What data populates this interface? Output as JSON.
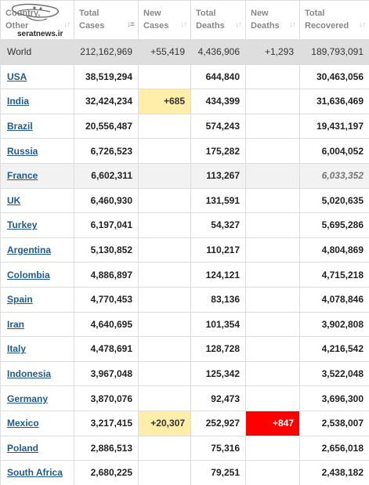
{
  "table": {
    "headers": [
      {
        "line1": "Country,",
        "line2": "Other",
        "sort_icon": "sort-arrows-icon"
      },
      {
        "line1": "Total",
        "line2": "Cases",
        "sort_icon": "sort-desc-active-icon"
      },
      {
        "line1": "New",
        "line2": "Cases",
        "sort_icon": "sort-arrows-icon"
      },
      {
        "line1": "Total",
        "line2": "Deaths",
        "sort_icon": "sort-arrows-icon"
      },
      {
        "line1": "New",
        "line2": "Deaths",
        "sort_icon": "sort-arrows-icon"
      },
      {
        "line1": "Total",
        "line2": "Recovered",
        "sort_icon": "sort-arrows-icon"
      }
    ],
    "rows": [
      {
        "country": "World",
        "total_cases": "212,162,969",
        "new_cases": "+55,419",
        "total_deaths": "4,436,906",
        "new_deaths": "+1,293",
        "total_recovered": "189,793,091"
      },
      {
        "country": "USA",
        "total_cases": "38,519,294",
        "new_cases": "",
        "total_deaths": "644,840",
        "new_deaths": "",
        "total_recovered": "30,463,056"
      },
      {
        "country": "India",
        "total_cases": "32,424,234",
        "new_cases": "+685",
        "total_deaths": "434,399",
        "new_deaths": "",
        "total_recovered": "31,636,469"
      },
      {
        "country": "Brazil",
        "total_cases": "20,556,487",
        "new_cases": "",
        "total_deaths": "574,243",
        "new_deaths": "",
        "total_recovered": "19,431,197"
      },
      {
        "country": "Russia",
        "total_cases": "6,726,523",
        "new_cases": "",
        "total_deaths": "175,282",
        "new_deaths": "",
        "total_recovered": "6,004,052"
      },
      {
        "country": "France",
        "total_cases": "6,602,311",
        "new_cases": "",
        "total_deaths": "113,267",
        "new_deaths": "",
        "total_recovered": "6,033,352"
      },
      {
        "country": "UK",
        "total_cases": "6,460,930",
        "new_cases": "",
        "total_deaths": "131,591",
        "new_deaths": "",
        "total_recovered": "5,020,635"
      },
      {
        "country": "Turkey",
        "total_cases": "6,197,041",
        "new_cases": "",
        "total_deaths": "54,327",
        "new_deaths": "",
        "total_recovered": "5,695,286"
      },
      {
        "country": "Argentina",
        "total_cases": "5,130,852",
        "new_cases": "",
        "total_deaths": "110,217",
        "new_deaths": "",
        "total_recovered": "4,804,869"
      },
      {
        "country": "Colombia",
        "total_cases": "4,886,897",
        "new_cases": "",
        "total_deaths": "124,121",
        "new_deaths": "",
        "total_recovered": "4,715,218"
      },
      {
        "country": "Spain",
        "total_cases": "4,770,453",
        "new_cases": "",
        "total_deaths": "83,136",
        "new_deaths": "",
        "total_recovered": "4,078,846"
      },
      {
        "country": "Iran",
        "total_cases": "4,640,695",
        "new_cases": "",
        "total_deaths": "101,354",
        "new_deaths": "",
        "total_recovered": "3,902,808"
      },
      {
        "country": "Italy",
        "total_cases": "4,478,691",
        "new_cases": "",
        "total_deaths": "128,728",
        "new_deaths": "",
        "total_recovered": "4,216,542"
      },
      {
        "country": "Indonesia",
        "total_cases": "3,967,048",
        "new_cases": "",
        "total_deaths": "125,342",
        "new_deaths": "",
        "total_recovered": "3,522,048"
      },
      {
        "country": "Germany",
        "total_cases": "3,870,076",
        "new_cases": "",
        "total_deaths": "92,473",
        "new_deaths": "",
        "total_recovered": "3,696,300"
      },
      {
        "country": "Mexico",
        "total_cases": "3,217,415",
        "new_cases": "+20,307",
        "total_deaths": "252,927",
        "new_deaths": "+847",
        "total_recovered": "2,538,007"
      },
      {
        "country": "Poland",
        "total_cases": "2,886,513",
        "new_cases": "",
        "total_deaths": "75,316",
        "new_deaths": "",
        "total_recovered": "2,656,018"
      },
      {
        "country": "South Africa",
        "total_cases": "2,680,225",
        "new_cases": "",
        "total_deaths": "79,251",
        "new_deaths": "",
        "total_recovered": "2,438,182"
      }
    ]
  },
  "watermark": {
    "text": "seratnews.ir"
  },
  "colors": {
    "link": "#1f5b8e",
    "new_cases_highlight": "#ffeeaa",
    "new_deaths_highlight": "#ff0000",
    "world_row_bg": "#dedede",
    "border": "#dddddd"
  }
}
